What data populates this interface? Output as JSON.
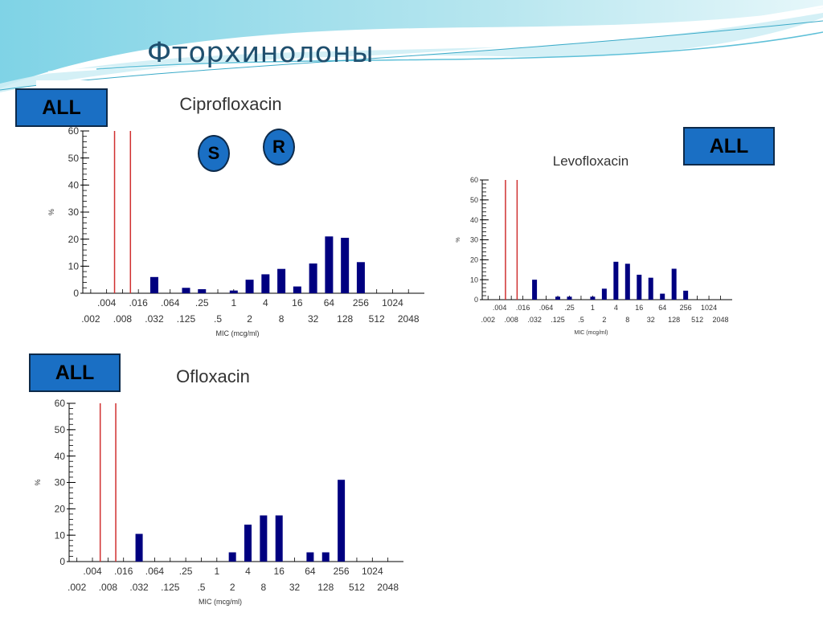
{
  "slide": {
    "title": "Фторхинолоны",
    "tag_label": "ALL",
    "s_label": "S",
    "r_label": "R"
  },
  "colors": {
    "bar": "#000080",
    "breakpoint": "#d03030",
    "axis": "#000000",
    "tag_fill": "#1a6fc4"
  },
  "chart_data": [
    {
      "type": "bar",
      "title": "Ciprofloxacin",
      "xlabel": "MIC (mcg/ml)",
      "ylabel": "%",
      "ylim": [
        0,
        60
      ],
      "yticks": [
        0,
        10,
        20,
        30,
        40,
        50,
        60
      ],
      "categories": [
        ".002",
        ".004",
        ".008",
        ".016",
        ".032",
        ".064",
        ".125",
        ".25",
        ".5",
        "1",
        "2",
        "4",
        "8",
        "16",
        "32",
        "64",
        "128",
        "256",
        "512",
        "1024",
        "2048"
      ],
      "values": [
        0,
        0,
        0,
        0,
        6,
        0,
        2,
        1.5,
        0,
        1,
        5,
        7,
        9,
        2.5,
        11,
        21,
        20.5,
        11.5,
        0,
        0,
        0
      ],
      "breakpoints": [
        1.5,
        2.5
      ]
    },
    {
      "type": "bar",
      "title": "Levofloxacin",
      "xlabel": "MIC (mcg/ml)",
      "ylabel": "%",
      "ylim": [
        0,
        60
      ],
      "yticks": [
        0,
        10,
        20,
        30,
        40,
        50,
        60
      ],
      "categories": [
        ".002",
        ".004",
        ".008",
        ".016",
        ".032",
        ".064",
        ".125",
        ".25",
        ".5",
        "1",
        "2",
        "4",
        "8",
        "16",
        "32",
        "64",
        "128",
        "256",
        "512",
        "1024",
        "2048"
      ],
      "values": [
        0,
        0,
        0,
        0,
        10,
        0,
        1.5,
        1.5,
        0,
        1.5,
        5.5,
        19,
        18,
        12.5,
        11,
        3,
        15.5,
        4.5,
        0,
        0,
        0
      ],
      "breakpoints": [
        1.5,
        2.5
      ]
    },
    {
      "type": "bar",
      "title": "Ofloxacin",
      "xlabel": "MIC (mcg/ml)",
      "ylabel": "%",
      "ylim": [
        0,
        60
      ],
      "yticks": [
        0,
        10,
        20,
        30,
        40,
        50,
        60
      ],
      "categories": [
        ".002",
        ".004",
        ".008",
        ".016",
        ".032",
        ".064",
        ".125",
        ".25",
        ".5",
        "1",
        "2",
        "4",
        "8",
        "16",
        "32",
        "64",
        "128",
        "256",
        "512",
        "1024",
        "2048"
      ],
      "values": [
        0,
        0,
        0,
        0,
        10.5,
        0,
        0,
        0,
        0,
        0,
        3.5,
        14,
        17.5,
        17.5,
        0,
        3.5,
        3.5,
        31,
        0,
        0,
        0
      ],
      "breakpoints": [
        1.5,
        2.5
      ]
    }
  ]
}
